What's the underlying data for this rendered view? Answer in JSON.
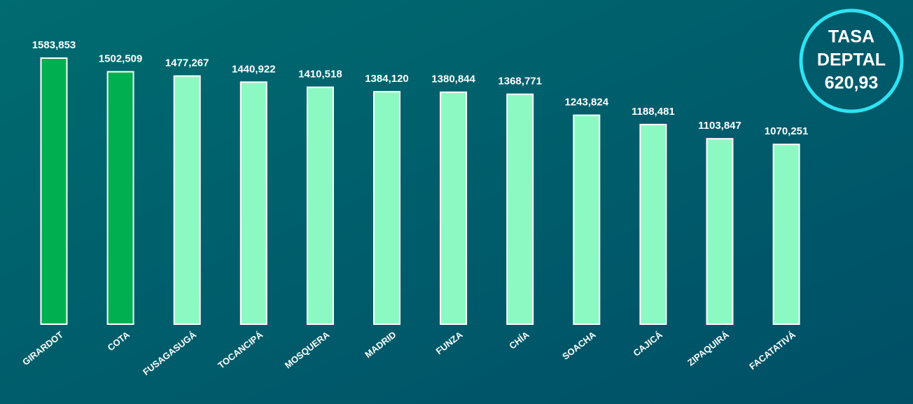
{
  "chart_data": {
    "type": "bar",
    "categories": [
      "GIRARDOT",
      "COTA",
      "FUSAGASUGÁ",
      "TOCANCIPÁ",
      "MOSQUERA",
      "MADRID",
      "FUNZA",
      "CHÍA",
      "SOACHA",
      "CAJICÁ",
      "ZIPAQUIRÁ",
      "FACATATIVÁ"
    ],
    "values": [
      1583.853,
      1502.509,
      1477.267,
      1440.922,
      1410.518,
      1384.12,
      1380.844,
      1368.771,
      1243.824,
      1188.481,
      1103.847,
      1070.251
    ],
    "value_labels": [
      "1583,853",
      "1502,509",
      "1477,267",
      "1440,922",
      "1410,518",
      "1384,120",
      "1380,844",
      "1368,771",
      "1243,824",
      "1188,481",
      "1103,847",
      "1070,251"
    ],
    "colors": [
      "#00b050",
      "#00b050",
      "#8cf9c2",
      "#8cf9c2",
      "#8cf9c2",
      "#8cf9c2",
      "#8cf9c2",
      "#8cf9c2",
      "#8cf9c2",
      "#8cf9c2",
      "#8cf9c2",
      "#8cf9c2"
    ],
    "annotation": [
      "TASA",
      "DEPTAL",
      "620,93"
    ]
  }
}
